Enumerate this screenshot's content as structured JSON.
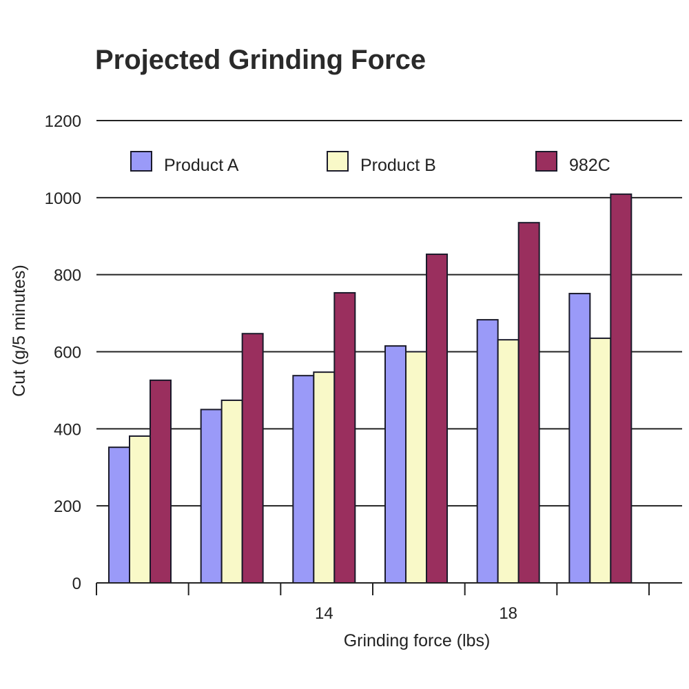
{
  "chart_data": {
    "type": "bar",
    "title": "Projected Grinding Force",
    "xlabel": "Grinding force (lbs)",
    "ylabel": "Cut (g/5 minutes)",
    "categories": [
      "",
      "",
      "14",
      "",
      "18",
      ""
    ],
    "ylim": [
      0,
      1200
    ],
    "yticks": [
      "0",
      "200",
      "400",
      "600",
      "800",
      "1000",
      "1200"
    ],
    "grid": true,
    "legend_position": "top",
    "series": [
      {
        "name": "Product A",
        "color": "#9a9af8",
        "values": [
          352,
          450,
          538,
          615,
          683,
          751
        ]
      },
      {
        "name": "Product B",
        "color": "#f9f9c8",
        "values": [
          381,
          474,
          547,
          600,
          631,
          635
        ]
      },
      {
        "name": "982C",
        "color": "#9a2f5e",
        "values": [
          526,
          647,
          753,
          853,
          935,
          1009
        ]
      }
    ]
  }
}
